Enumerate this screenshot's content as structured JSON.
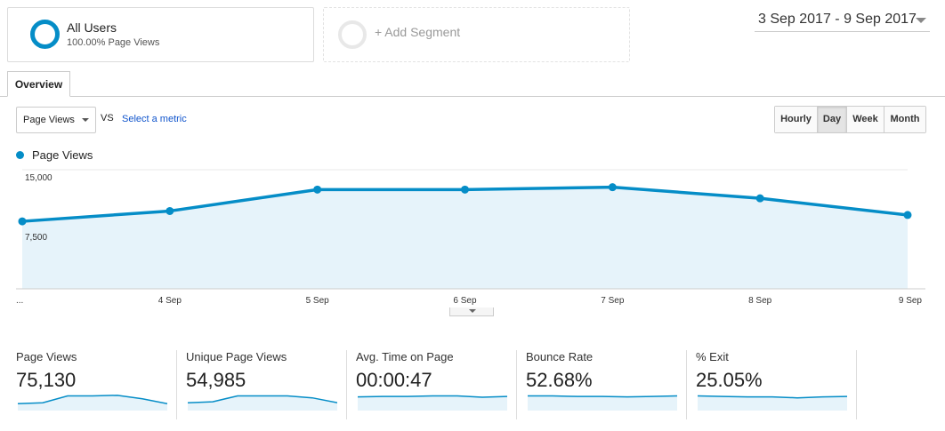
{
  "segment": {
    "title": "All Users",
    "subtitle": "100.00% Page Views",
    "add_label": "+ Add Segment"
  },
  "date_range": "3 Sep 2017 - 9 Sep 2017",
  "tabs": [
    {
      "label": "Overview",
      "active": true
    }
  ],
  "controls": {
    "metric_selected": "Page Views",
    "vs_label": "VS",
    "select_metric_label": "Select a metric",
    "granularity": [
      {
        "label": "Hourly",
        "active": false
      },
      {
        "label": "Day",
        "active": true
      },
      {
        "label": "Week",
        "active": false
      },
      {
        "label": "Month",
        "active": false
      }
    ]
  },
  "legend": {
    "label": "Page Views",
    "color": "#058dc7"
  },
  "chart_data": {
    "type": "area",
    "series": [
      {
        "name": "Page Views",
        "values": [
          8500,
          9800,
          12500,
          12500,
          12800,
          11400,
          9300
        ]
      }
    ],
    "x": [
      "...",
      "4 Sep",
      "5 Sep",
      "6 Sep",
      "7 Sep",
      "8 Sep",
      "9 Sep"
    ],
    "y_ticks": [
      "15,000",
      "7,500"
    ],
    "ylim": [
      0,
      15000
    ],
    "grid": true,
    "line_color": "#058dc7",
    "fill_color": "#e6f3fa"
  },
  "scorecards": [
    {
      "label": "Page Views",
      "value": "75,130",
      "spark": [
        0.35,
        0.4,
        0.75,
        0.75,
        0.78,
        0.6,
        0.35
      ]
    },
    {
      "label": "Unique Page Views",
      "value": "54,985",
      "spark": [
        0.4,
        0.45,
        0.75,
        0.75,
        0.75,
        0.65,
        0.4
      ]
    },
    {
      "label": "Avg. Time on Page",
      "value": "00:00:47",
      "spark": [
        0.7,
        0.72,
        0.72,
        0.75,
        0.75,
        0.68,
        0.72
      ]
    },
    {
      "label": "Bounce Rate",
      "value": "52.68%",
      "spark": [
        0.75,
        0.75,
        0.72,
        0.72,
        0.7,
        0.72,
        0.75
      ]
    },
    {
      "label": "% Exit",
      "value": "25.05%",
      "spark": [
        0.75,
        0.72,
        0.7,
        0.7,
        0.65,
        0.7,
        0.72
      ]
    }
  ]
}
